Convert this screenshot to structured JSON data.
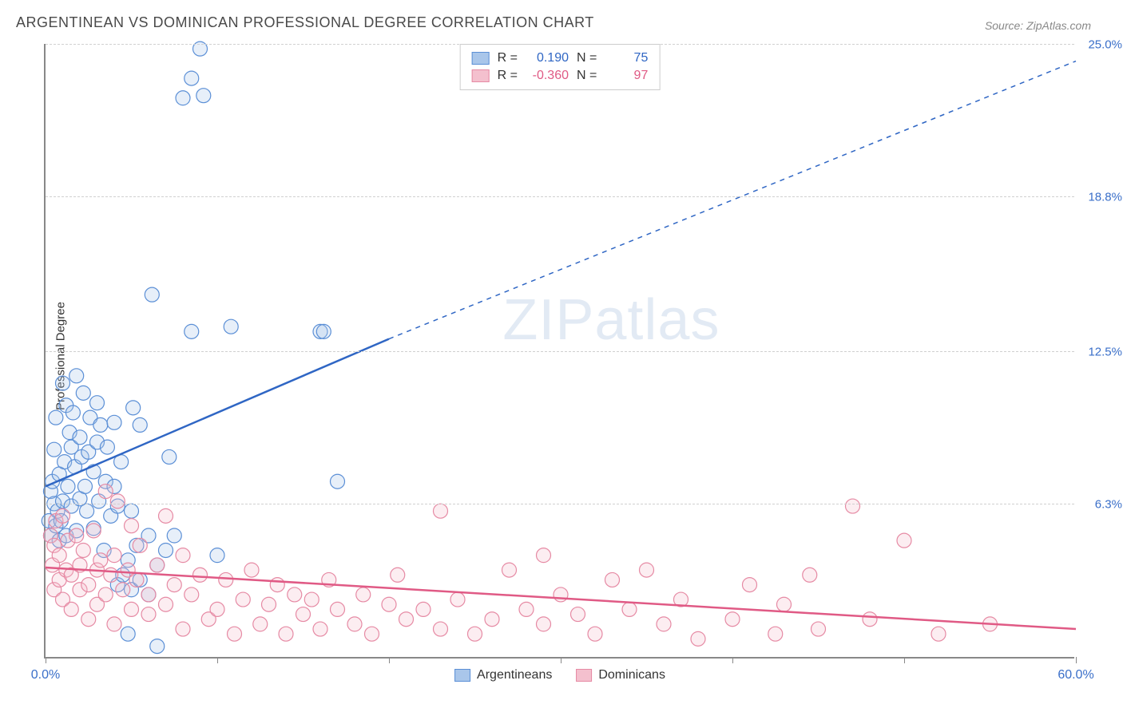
{
  "title": "ARGENTINEAN VS DOMINICAN PROFESSIONAL DEGREE CORRELATION CHART",
  "source": "Source: ZipAtlas.com",
  "ylabel": "Professional Degree",
  "watermark_prefix": "ZIP",
  "watermark_suffix": "atlas",
  "chart": {
    "type": "scatter",
    "background_color": "#ffffff",
    "grid_color": "#d0d0d0",
    "axis_color": "#888888",
    "xlim": [
      0,
      60
    ],
    "ylim": [
      0,
      25
    ],
    "xticks": [
      0,
      10,
      20,
      30,
      40,
      50,
      60
    ],
    "x_start_label": "0.0%",
    "x_end_label": "60.0%",
    "yticks": [
      {
        "value": 6.3,
        "label": "6.3%"
      },
      {
        "value": 12.5,
        "label": "12.5%"
      },
      {
        "value": 18.8,
        "label": "18.8%"
      },
      {
        "value": 25.0,
        "label": "25.0%"
      }
    ],
    "marker_radius": 9,
    "marker_stroke_width": 1.2,
    "marker_fill_opacity": 0.28,
    "line_width_solid": 2.5,
    "line_width_dashed": 1.5,
    "dash_pattern": "6,6",
    "label_fontsize": 15,
    "series": [
      {
        "name": "Argentineans",
        "color_stroke": "#5b8fd6",
        "color_fill": "#a9c6ea",
        "line_color": "#2f66c4",
        "R_label": "R =",
        "R_value": "0.190",
        "N_label": "N =",
        "N_value": "75",
        "trend_solid": {
          "x1": 0,
          "y1": 7.0,
          "x2": 20,
          "y2": 13.0
        },
        "trend_dashed": {
          "x1": 20,
          "y1": 13.0,
          "x2": 60,
          "y2": 24.3
        },
        "points": [
          [
            0.2,
            5.6
          ],
          [
            0.3,
            6.8
          ],
          [
            0.3,
            5.0
          ],
          [
            0.4,
            7.2
          ],
          [
            0.5,
            6.3
          ],
          [
            0.5,
            8.5
          ],
          [
            0.6,
            5.4
          ],
          [
            0.6,
            9.8
          ],
          [
            0.7,
            6.0
          ],
          [
            0.8,
            7.5
          ],
          [
            0.8,
            4.8
          ],
          [
            0.9,
            5.6
          ],
          [
            1.0,
            11.2
          ],
          [
            1.0,
            6.4
          ],
          [
            1.1,
            8.0
          ],
          [
            1.2,
            10.3
          ],
          [
            1.2,
            5.0
          ],
          [
            1.3,
            7.0
          ],
          [
            1.4,
            9.2
          ],
          [
            1.5,
            8.6
          ],
          [
            1.5,
            6.2
          ],
          [
            1.6,
            10.0
          ],
          [
            1.7,
            7.8
          ],
          [
            1.8,
            11.5
          ],
          [
            1.8,
            5.2
          ],
          [
            2.0,
            9.0
          ],
          [
            2.0,
            6.5
          ],
          [
            2.1,
            8.2
          ],
          [
            2.2,
            10.8
          ],
          [
            2.3,
            7.0
          ],
          [
            2.4,
            6.0
          ],
          [
            2.5,
            8.4
          ],
          [
            2.6,
            9.8
          ],
          [
            2.8,
            5.3
          ],
          [
            2.8,
            7.6
          ],
          [
            3.0,
            8.8
          ],
          [
            3.0,
            10.4
          ],
          [
            3.1,
            6.4
          ],
          [
            3.2,
            9.5
          ],
          [
            3.4,
            4.4
          ],
          [
            3.5,
            7.2
          ],
          [
            3.6,
            8.6
          ],
          [
            3.8,
            5.8
          ],
          [
            4.0,
            7.0
          ],
          [
            4.0,
            9.6
          ],
          [
            4.2,
            3.0
          ],
          [
            4.2,
            6.2
          ],
          [
            4.4,
            8.0
          ],
          [
            4.5,
            3.4
          ],
          [
            4.8,
            1.0
          ],
          [
            4.8,
            4.0
          ],
          [
            5.0,
            2.8
          ],
          [
            5.0,
            6.0
          ],
          [
            5.1,
            10.2
          ],
          [
            5.3,
            4.6
          ],
          [
            5.5,
            3.2
          ],
          [
            5.5,
            9.5
          ],
          [
            6.0,
            2.6
          ],
          [
            6.0,
            5.0
          ],
          [
            6.2,
            14.8
          ],
          [
            6.5,
            0.5
          ],
          [
            6.5,
            3.8
          ],
          [
            7.0,
            4.4
          ],
          [
            7.2,
            8.2
          ],
          [
            7.5,
            5.0
          ],
          [
            8.0,
            22.8
          ],
          [
            8.5,
            23.6
          ],
          [
            8.5,
            13.3
          ],
          [
            9.0,
            24.8
          ],
          [
            9.2,
            22.9
          ],
          [
            10.0,
            4.2
          ],
          [
            10.8,
            13.5
          ],
          [
            16.0,
            13.3
          ],
          [
            16.2,
            13.3
          ],
          [
            17.0,
            7.2
          ]
        ]
      },
      {
        "name": "Dominicans",
        "color_stroke": "#e68aa4",
        "color_fill": "#f4c0ce",
        "line_color": "#e05a85",
        "R_label": "R =",
        "R_value": "-0.360",
        "N_label": "N =",
        "N_value": "97",
        "trend_solid": {
          "x1": 0,
          "y1": 3.7,
          "x2": 60,
          "y2": 1.2
        },
        "trend_dashed": null,
        "points": [
          [
            0.3,
            5.0
          ],
          [
            0.4,
            3.8
          ],
          [
            0.5,
            4.6
          ],
          [
            0.5,
            2.8
          ],
          [
            0.6,
            5.6
          ],
          [
            0.8,
            3.2
          ],
          [
            0.8,
            4.2
          ],
          [
            1.0,
            5.8
          ],
          [
            1.0,
            2.4
          ],
          [
            1.2,
            3.6
          ],
          [
            1.3,
            4.8
          ],
          [
            1.5,
            2.0
          ],
          [
            1.5,
            3.4
          ],
          [
            1.8,
            5.0
          ],
          [
            2.0,
            2.8
          ],
          [
            2.0,
            3.8
          ],
          [
            2.2,
            4.4
          ],
          [
            2.5,
            1.6
          ],
          [
            2.5,
            3.0
          ],
          [
            2.8,
            5.2
          ],
          [
            3.0,
            3.6
          ],
          [
            3.0,
            2.2
          ],
          [
            3.2,
            4.0
          ],
          [
            3.5,
            6.8
          ],
          [
            3.5,
            2.6
          ],
          [
            3.8,
            3.4
          ],
          [
            4.0,
            1.4
          ],
          [
            4.0,
            4.2
          ],
          [
            4.2,
            6.4
          ],
          [
            4.5,
            2.8
          ],
          [
            4.8,
            3.6
          ],
          [
            5.0,
            5.4
          ],
          [
            5.0,
            2.0
          ],
          [
            5.3,
            3.2
          ],
          [
            5.5,
            4.6
          ],
          [
            6.0,
            1.8
          ],
          [
            6.0,
            2.6
          ],
          [
            6.5,
            3.8
          ],
          [
            7.0,
            5.8
          ],
          [
            7.0,
            2.2
          ],
          [
            7.5,
            3.0
          ],
          [
            8.0,
            1.2
          ],
          [
            8.0,
            4.2
          ],
          [
            8.5,
            2.6
          ],
          [
            9.0,
            3.4
          ],
          [
            9.5,
            1.6
          ],
          [
            10.0,
            2.0
          ],
          [
            10.5,
            3.2
          ],
          [
            11.0,
            1.0
          ],
          [
            11.5,
            2.4
          ],
          [
            12.0,
            3.6
          ],
          [
            12.5,
            1.4
          ],
          [
            13.0,
            2.2
          ],
          [
            13.5,
            3.0
          ],
          [
            14.0,
            1.0
          ],
          [
            14.5,
            2.6
          ],
          [
            15.0,
            1.8
          ],
          [
            15.5,
            2.4
          ],
          [
            16.0,
            1.2
          ],
          [
            16.5,
            3.2
          ],
          [
            17.0,
            2.0
          ],
          [
            18.0,
            1.4
          ],
          [
            18.5,
            2.6
          ],
          [
            19.0,
            1.0
          ],
          [
            20.0,
            2.2
          ],
          [
            20.5,
            3.4
          ],
          [
            21.0,
            1.6
          ],
          [
            22.0,
            2.0
          ],
          [
            23.0,
            1.2
          ],
          [
            23.0,
            6.0
          ],
          [
            24.0,
            2.4
          ],
          [
            25.0,
            1.0
          ],
          [
            26.0,
            1.6
          ],
          [
            27.0,
            3.6
          ],
          [
            28.0,
            2.0
          ],
          [
            29.0,
            4.2
          ],
          [
            29.0,
            1.4
          ],
          [
            30.0,
            2.6
          ],
          [
            31.0,
            1.8
          ],
          [
            32.0,
            1.0
          ],
          [
            33.0,
            3.2
          ],
          [
            34.0,
            2.0
          ],
          [
            35.0,
            3.6
          ],
          [
            36.0,
            1.4
          ],
          [
            37.0,
            2.4
          ],
          [
            38.0,
            0.8
          ],
          [
            40.0,
            1.6
          ],
          [
            41.0,
            3.0
          ],
          [
            42.5,
            1.0
          ],
          [
            43.0,
            2.2
          ],
          [
            44.5,
            3.4
          ],
          [
            45.0,
            1.2
          ],
          [
            47.0,
            6.2
          ],
          [
            48.0,
            1.6
          ],
          [
            50.0,
            4.8
          ],
          [
            52.0,
            1.0
          ],
          [
            55.0,
            1.4
          ]
        ]
      }
    ]
  },
  "ytick_color_blue": "#3a6fc9",
  "xlabel_color_blue": "#3a6fc9"
}
